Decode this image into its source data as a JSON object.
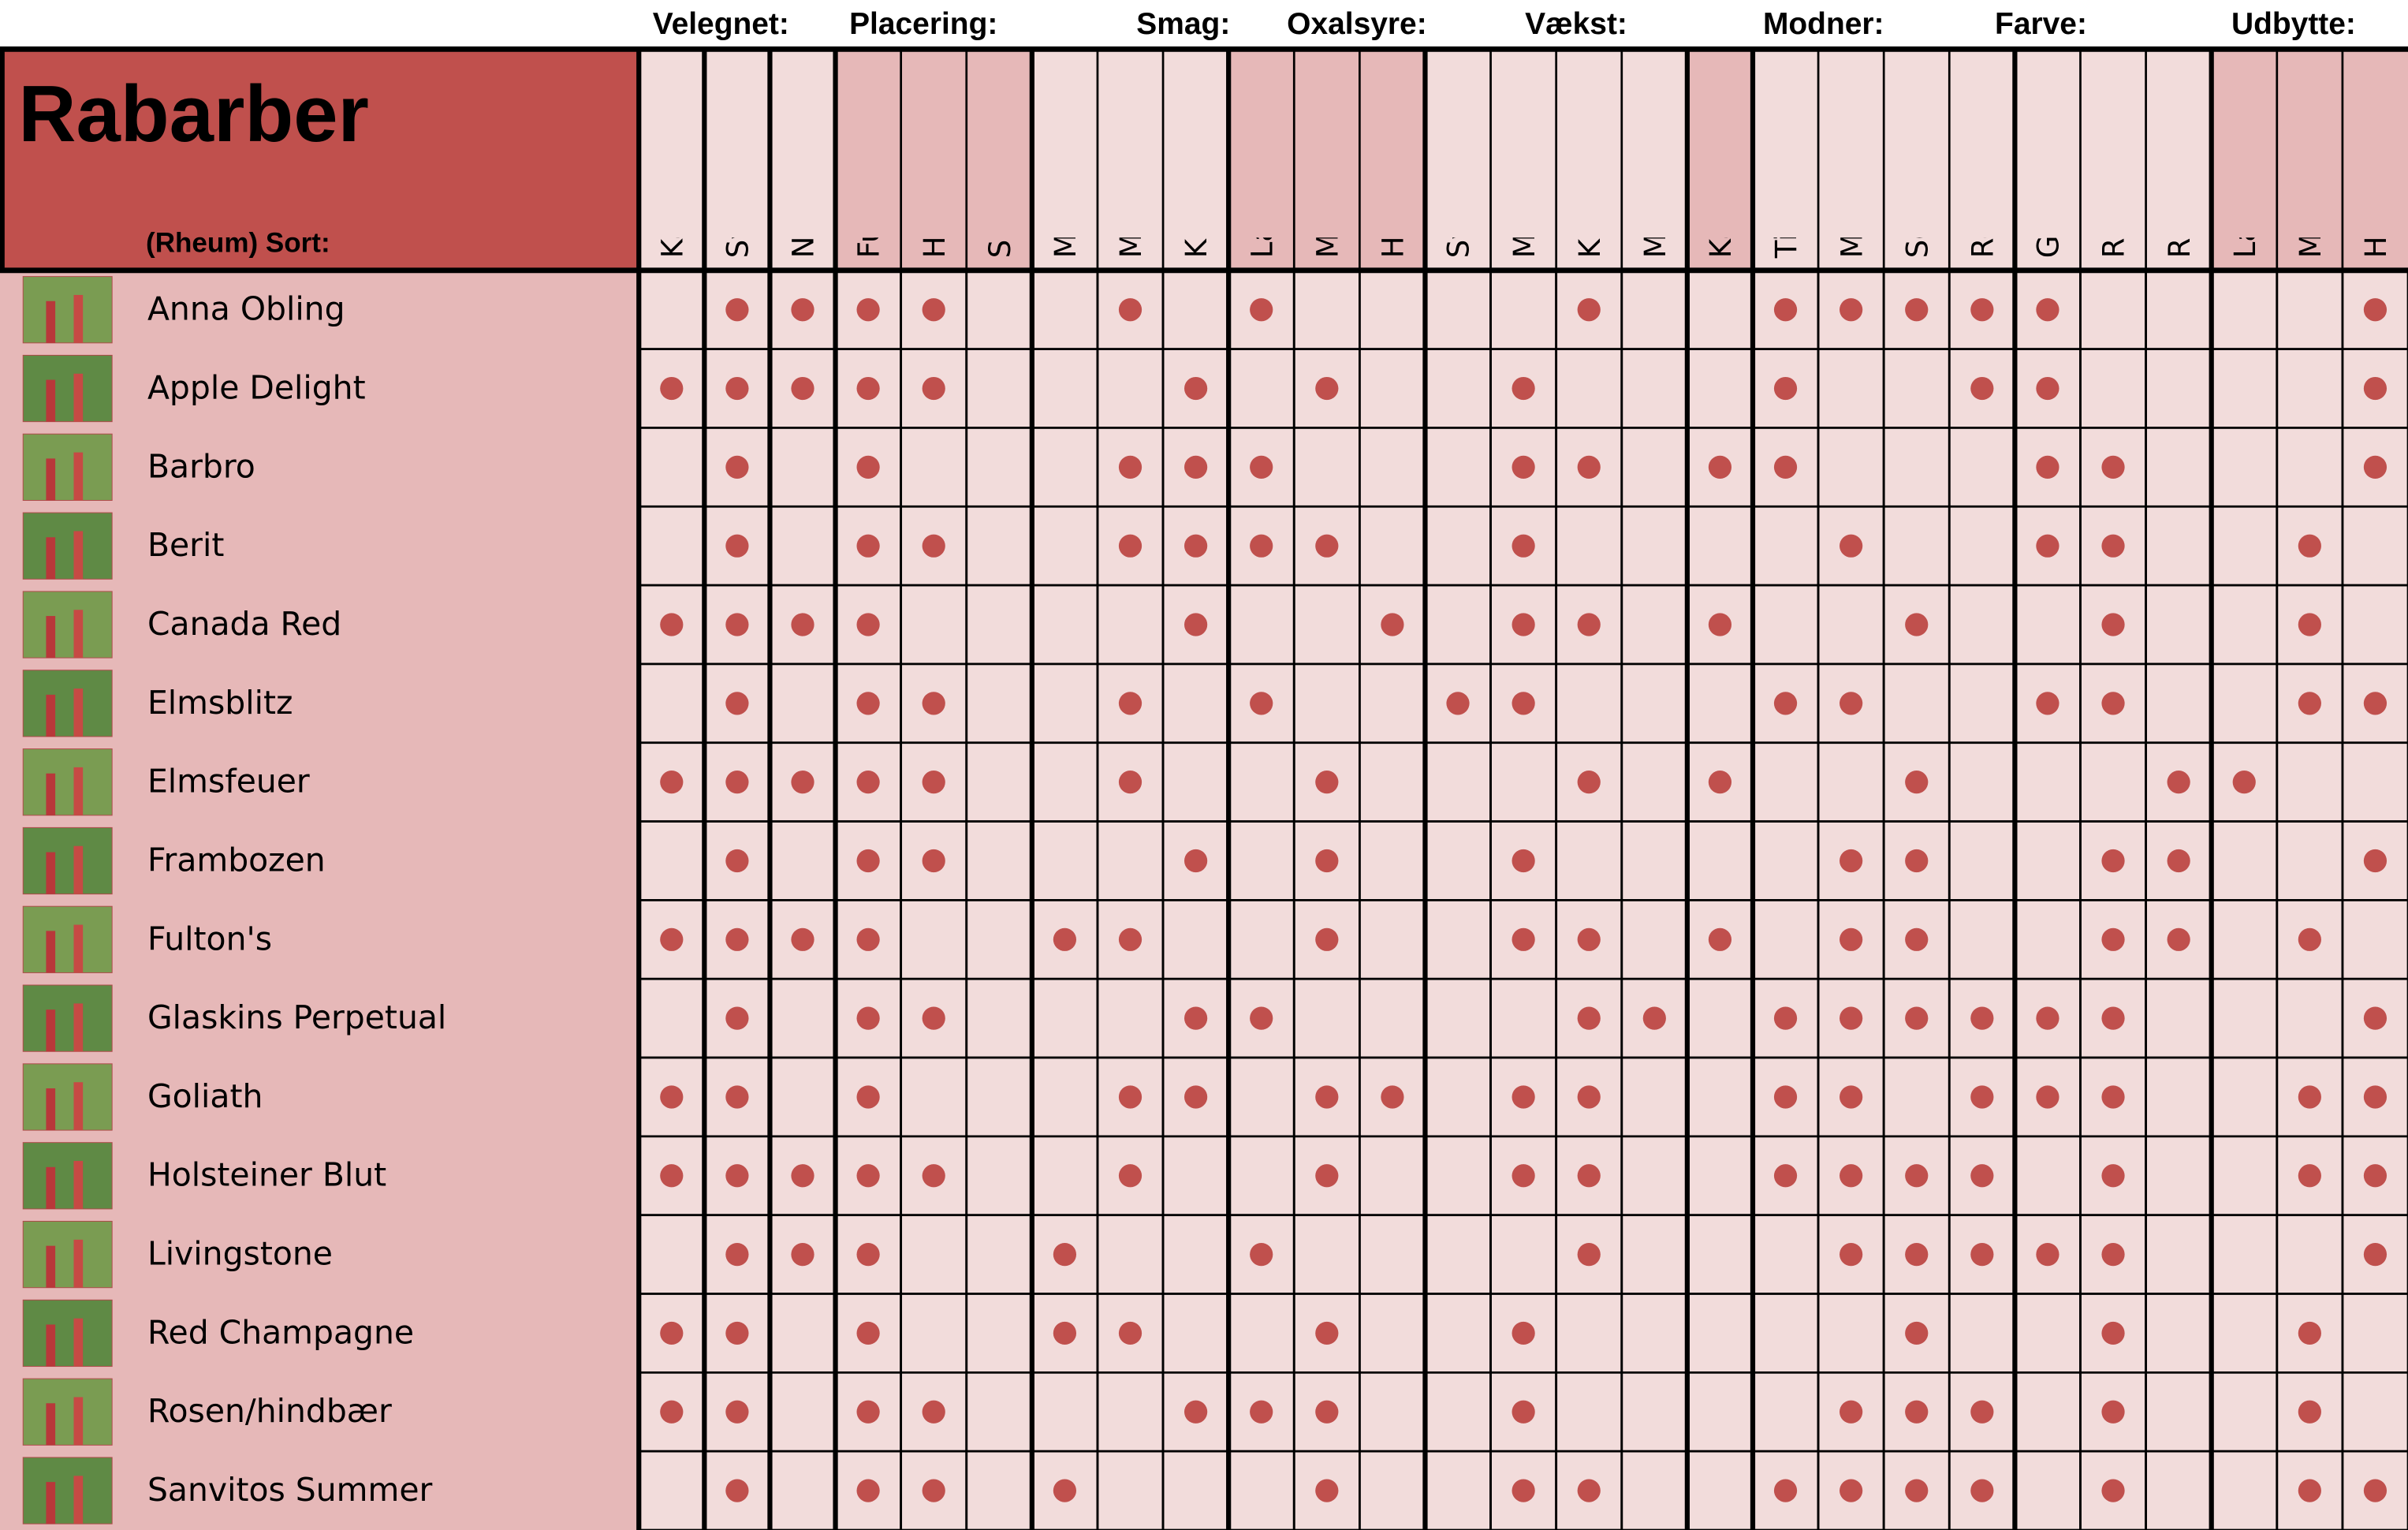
{
  "title": "Rabarber",
  "subtitle": "(Rheum)  Sort:",
  "groups": [
    {
      "label": "Velegnet:",
      "columns": [
        "Kager/grød",
        "Sylt/saft",
        "Nedfrysning"
      ]
    },
    {
      "label": "Placering:",
      "columns": [
        "Fuld sol",
        "Halvskygge",
        "Skygge"
      ]
    },
    {
      "label": "Smag:",
      "columns": [
        "Mild",
        "Middel",
        "Kraftig"
      ]
    },
    {
      "label": "Oxalsyre:",
      "columns": [
        "Lav",
        "Middel",
        "Høj"
      ]
    },
    {
      "label": "Vækst:",
      "columns": [
        "Svag",
        "Middel",
        "Kraftig",
        "Meget kraftig"
      ]
    },
    {
      "columns": [
        "Kan drives"
      ]
    },
    {
      "label": "Modner:",
      "columns": [
        "Tidligt (April-)",
        "Middel (Maj-)",
        "Sen (juni-juli)",
        "Remonterende"
      ]
    },
    {
      "label": "Farve:",
      "columns": [
        "Grøn skræl",
        "Rød Skræl",
        "Rødt kød"
      ]
    },
    {
      "label": "Udbytte:",
      "columns": [
        "Lavt",
        "Middel",
        "Højt"
      ]
    }
  ],
  "rows": [
    {
      "name": "Anna Obling",
      "marks": [
        0,
        1,
        1,
        1,
        1,
        0,
        0,
        1,
        0,
        1,
        0,
        0,
        0,
        0,
        1,
        0,
        0,
        1,
        1,
        1,
        1,
        1,
        0,
        0,
        0,
        0,
        1
      ]
    },
    {
      "name": "Apple Delight",
      "marks": [
        1,
        1,
        1,
        1,
        1,
        0,
        0,
        0,
        1,
        0,
        1,
        0,
        0,
        1,
        0,
        0,
        0,
        1,
        0,
        0,
        1,
        1,
        0,
        0,
        0,
        0,
        1
      ]
    },
    {
      "name": "Barbro",
      "marks": [
        0,
        1,
        0,
        1,
        0,
        0,
        0,
        1,
        1,
        1,
        0,
        0,
        0,
        1,
        1,
        0,
        1,
        1,
        0,
        0,
        0,
        1,
        1,
        0,
        0,
        0,
        1
      ]
    },
    {
      "name": "Berit",
      "marks": [
        0,
        1,
        0,
        1,
        1,
        0,
        0,
        1,
        1,
        1,
        1,
        0,
        0,
        1,
        0,
        0,
        0,
        0,
        1,
        0,
        0,
        1,
        1,
        0,
        0,
        1,
        0
      ]
    },
    {
      "name": "Canada Red",
      "marks": [
        1,
        1,
        1,
        1,
        0,
        0,
        0,
        0,
        1,
        0,
        0,
        1,
        0,
        1,
        1,
        0,
        1,
        0,
        0,
        1,
        0,
        0,
        1,
        0,
        0,
        1,
        0
      ]
    },
    {
      "name": "Elmsblitz",
      "marks": [
        0,
        1,
        0,
        1,
        1,
        0,
        0,
        1,
        0,
        1,
        0,
        0,
        1,
        1,
        0,
        0,
        0,
        1,
        1,
        0,
        0,
        1,
        1,
        0,
        0,
        1,
        1
      ]
    },
    {
      "name": "Elmsfeuer",
      "marks": [
        1,
        1,
        1,
        1,
        1,
        0,
        0,
        1,
        0,
        0,
        1,
        0,
        0,
        0,
        1,
        0,
        1,
        0,
        0,
        1,
        0,
        0,
        0,
        1,
        1,
        0,
        0
      ]
    },
    {
      "name": "Frambozen",
      "marks": [
        0,
        1,
        0,
        1,
        1,
        0,
        0,
        0,
        1,
        0,
        1,
        0,
        0,
        1,
        0,
        0,
        0,
        0,
        1,
        1,
        0,
        0,
        1,
        1,
        0,
        0,
        1
      ]
    },
    {
      "name": "Fulton's",
      "marks": [
        1,
        1,
        1,
        1,
        0,
        0,
        1,
        1,
        0,
        0,
        1,
        0,
        0,
        1,
        1,
        0,
        1,
        0,
        1,
        1,
        0,
        0,
        1,
        1,
        0,
        1,
        0
      ]
    },
    {
      "name": "Glaskins Perpetual",
      "marks": [
        0,
        1,
        0,
        1,
        1,
        0,
        0,
        0,
        1,
        1,
        0,
        0,
        0,
        0,
        1,
        1,
        0,
        1,
        1,
        1,
        1,
        1,
        1,
        0,
        0,
        0,
        1
      ]
    },
    {
      "name": "Goliath",
      "marks": [
        1,
        1,
        0,
        1,
        0,
        0,
        0,
        1,
        1,
        0,
        1,
        1,
        0,
        1,
        1,
        0,
        0,
        1,
        1,
        0,
        1,
        1,
        1,
        0,
        0,
        1,
        1
      ]
    },
    {
      "name": "Holsteiner Blut",
      "marks": [
        1,
        1,
        1,
        1,
        1,
        0,
        0,
        1,
        0,
        0,
        1,
        0,
        0,
        1,
        1,
        0,
        0,
        1,
        1,
        1,
        1,
        0,
        1,
        0,
        0,
        1,
        1
      ]
    },
    {
      "name": "Livingstone",
      "marks": [
        0,
        1,
        1,
        1,
        0,
        0,
        1,
        0,
        0,
        1,
        0,
        0,
        0,
        0,
        1,
        0,
        0,
        0,
        1,
        1,
        1,
        1,
        1,
        0,
        0,
        0,
        1
      ]
    },
    {
      "name": "Red Champagne",
      "marks": [
        1,
        1,
        0,
        1,
        0,
        0,
        1,
        1,
        0,
        0,
        1,
        0,
        0,
        1,
        0,
        0,
        0,
        0,
        0,
        1,
        0,
        0,
        1,
        0,
        0,
        1,
        0
      ]
    },
    {
      "name": "Rosen/hindbær",
      "marks": [
        1,
        1,
        0,
        1,
        1,
        0,
        0,
        0,
        1,
        1,
        1,
        0,
        0,
        1,
        0,
        0,
        0,
        0,
        1,
        1,
        1,
        0,
        1,
        0,
        0,
        1,
        0
      ]
    },
    {
      "name": "Sanvitos Summer",
      "marks": [
        0,
        1,
        0,
        1,
        1,
        0,
        1,
        0,
        0,
        0,
        1,
        0,
        0,
        1,
        1,
        0,
        0,
        1,
        1,
        1,
        1,
        0,
        1,
        0,
        0,
        1,
        1
      ]
    }
  ]
}
